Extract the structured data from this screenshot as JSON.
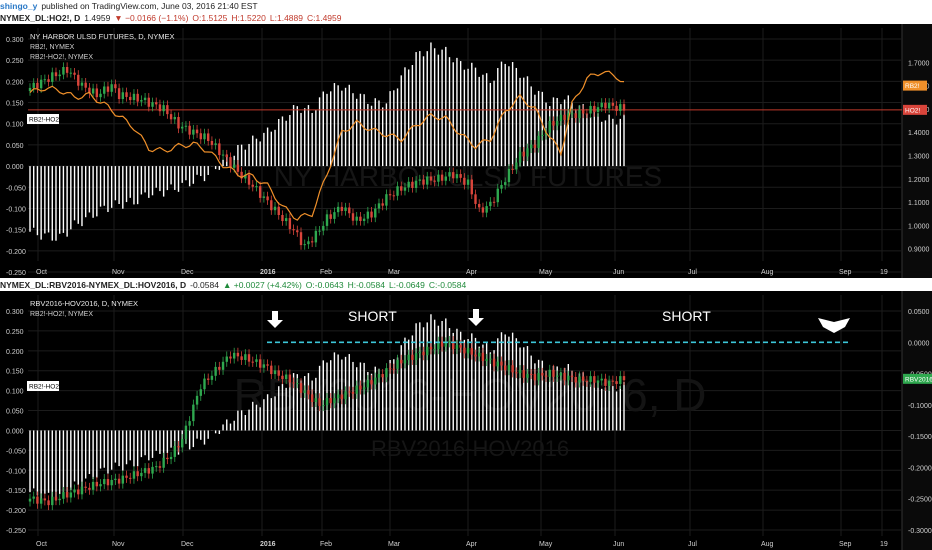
{
  "header": {
    "user": "shingo_y",
    "published": "published on TradingView.com, June 03, 2016 21:40 EST"
  },
  "theme": {
    "price_up": "#2fa84f",
    "price_down": "#d9453b",
    "orange": "#f0902a",
    "ref_line": "#c0392b",
    "cyan": "#3cc6d8",
    "volume": "#ffffff",
    "background": "#000000",
    "grid": "#1c1c1c"
  },
  "panels": [
    {
      "legend_bar": {
        "symbol": "NYMEX_DL:HO2!, D",
        "last": "1.4959",
        "change": "▼ −0.0166 (−1.1%)",
        "o": "O:1.5125",
        "h": "H:1.5220",
        "l": "L:1.4889",
        "c": "C:1.4959"
      },
      "legend": {
        "title": "NY HARBOR ULSD FUTURES, D, NYMEX",
        "line2": "RB2!, NYMEX",
        "line3": "RB2!-HO2!, NYMEX"
      },
      "watermark": "NY HARBOR ULSD FUTURES",
      "left_badge": "RB2!-HO2!",
      "right_badges": [
        {
          "text": "RB2!",
          "value": 1.6,
          "color": "#f0902a"
        },
        {
          "text": "HO2!",
          "value": 1.4959,
          "color": "#d9453b"
        }
      ]
    },
    {
      "legend_bar": {
        "symbol": "NYMEX_DL:RBV2016-NYMEX_DL:HOV2016, D",
        "last": "-0.0584",
        "change": "▲ +0.0027 (+4.42%)",
        "o": "O:-0.0643",
        "h": "H:-0.0584",
        "l": "L:-0.0649",
        "c": "C:-0.0584"
      },
      "legend": {
        "title": "RBV2016-HOV2016, D, NYMEX",
        "line2": "RB2!-HO2!, NYMEX",
        "line3": ""
      },
      "watermarks": [
        "RBV2016-HOV2016, D",
        "RBV2016-HOV2016"
      ],
      "left_badge": "RB2!-HO2!",
      "right_badges": [
        {
          "text": "RBV2016",
          "value": -0.0584,
          "color": "#2fa84f"
        }
      ],
      "annotations": [
        "SHORT",
        "SHORT"
      ]
    }
  ],
  "chart_data": [
    {
      "type": "line",
      "title": "NY HARBOR ULSD FUTURES, D, NYMEX",
      "x_tick_labels": [
        "Oct",
        "Nov",
        "Dec",
        "2016",
        "Feb",
        "Mar",
        "Apr",
        "May",
        "Jun",
        "Jul",
        "Aug",
        "Sep",
        "19"
      ],
      "left_axis": {
        "ticks": [
          0.3,
          0.25,
          0.2,
          0.15,
          0.1,
          0.05,
          0.0,
          -0.05,
          -0.1,
          -0.15,
          -0.2,
          -0.25
        ],
        "ylim": [
          -0.25,
          0.3
        ]
      },
      "right_axis": {
        "ticks": [
          1.7,
          1.6,
          1.5,
          1.4,
          1.3,
          1.2,
          1.1,
          1.0,
          0.9
        ],
        "ylim": [
          0.8,
          1.8
        ]
      },
      "series": [
        {
          "name": "HO2!",
          "style": "candlestick",
          "axis": "right",
          "values": [
            [
              0,
              1.59
            ],
            [
              6,
              1.64
            ],
            [
              10,
              1.67
            ],
            [
              14,
              1.6
            ],
            [
              18,
              1.56
            ],
            [
              22,
              1.6
            ],
            [
              24,
              1.56
            ],
            [
              30,
              1.54
            ],
            [
              36,
              1.5
            ],
            [
              40,
              1.43
            ],
            [
              44,
              1.4
            ],
            [
              48,
              1.37
            ],
            [
              52,
              1.3
            ],
            [
              56,
              1.23
            ],
            [
              60,
              1.17
            ],
            [
              64,
              1.1
            ],
            [
              68,
              1.03
            ],
            [
              71,
              0.98
            ],
            [
              74,
              0.91
            ],
            [
              77,
              0.96
            ],
            [
              80,
              1.03
            ],
            [
              84,
              1.08
            ],
            [
              88,
              1.02
            ],
            [
              92,
              1.05
            ],
            [
              96,
              1.12
            ],
            [
              100,
              1.16
            ],
            [
              105,
              1.19
            ],
            [
              110,
              1.2
            ],
            [
              114,
              1.22
            ],
            [
              118,
              1.18
            ],
            [
              121,
              1.06
            ],
            [
              124,
              1.09
            ],
            [
              128,
              1.2
            ],
            [
              132,
              1.3
            ],
            [
              136,
              1.35
            ],
            [
              140,
              1.43
            ],
            [
              144,
              1.47
            ],
            [
              148,
              1.48
            ],
            [
              152,
              1.5
            ],
            [
              155,
              1.52
            ],
            [
              157,
              1.51
            ],
            [
              160,
              1.5
            ]
          ]
        },
        {
          "name": "RB2!",
          "axis": "right",
          "values": [
            [
              0,
              1.57
            ],
            [
              4,
              1.59
            ],
            [
              8,
              1.58
            ],
            [
              12,
              1.55
            ],
            [
              16,
              1.56
            ],
            [
              20,
              1.52
            ],
            [
              24,
              1.47
            ],
            [
              28,
              1.42
            ],
            [
              32,
              1.33
            ],
            [
              36,
              1.32
            ],
            [
              40,
              1.34
            ],
            [
              44,
              1.35
            ],
            [
              48,
              1.32
            ],
            [
              52,
              1.26
            ],
            [
              56,
              1.22
            ],
            [
              60,
              1.21
            ],
            [
              64,
              1.17
            ],
            [
              68,
              1.08
            ],
            [
              72,
              1.03
            ],
            [
              76,
              1.05
            ],
            [
              80,
              1.22
            ],
            [
              84,
              1.4
            ],
            [
              88,
              1.44
            ],
            [
              92,
              1.41
            ],
            [
              96,
              1.39
            ],
            [
              100,
              1.37
            ],
            [
              104,
              1.43
            ],
            [
              108,
              1.47
            ],
            [
              112,
              1.46
            ],
            [
              116,
              1.39
            ],
            [
              120,
              1.34
            ],
            [
              124,
              1.37
            ],
            [
              128,
              1.49
            ],
            [
              132,
              1.55
            ],
            [
              136,
              1.5
            ],
            [
              140,
              1.38
            ],
            [
              143,
              1.31
            ],
            [
              146,
              1.52
            ],
            [
              150,
              1.63
            ],
            [
              154,
              1.66
            ],
            [
              158,
              1.64
            ],
            [
              160,
              1.61
            ]
          ]
        },
        {
          "name": "RB2!-HO2!",
          "style": "histogram",
          "axis": "left",
          "values": [
            [
              0,
              -0.155
            ],
            [
              4,
              -0.165
            ],
            [
              8,
              -0.17
            ],
            [
              12,
              -0.14
            ],
            [
              16,
              -0.12
            ],
            [
              20,
              -0.1
            ],
            [
              24,
              -0.09
            ],
            [
              28,
              -0.085
            ],
            [
              32,
              -0.065
            ],
            [
              36,
              -0.06
            ],
            [
              40,
              -0.05
            ],
            [
              44,
              -0.035
            ],
            [
              48,
              -0.02
            ],
            [
              52,
              0.01
            ],
            [
              56,
              0.04
            ],
            [
              60,
              0.06
            ],
            [
              64,
              0.08
            ],
            [
              68,
              0.11
            ],
            [
              72,
              0.14
            ],
            [
              76,
              0.13
            ],
            [
              80,
              0.18
            ],
            [
              84,
              0.19
            ],
            [
              88,
              0.17
            ],
            [
              92,
              0.15
            ],
            [
              96,
              0.15
            ],
            [
              100,
              0.21
            ],
            [
              104,
              0.26
            ],
            [
              108,
              0.28
            ],
            [
              112,
              0.27
            ],
            [
              116,
              0.24
            ],
            [
              120,
              0.23
            ],
            [
              124,
              0.2
            ],
            [
              128,
              0.25
            ],
            [
              132,
              0.22
            ],
            [
              136,
              0.18
            ],
            [
              140,
              0.15
            ],
            [
              144,
              0.16
            ],
            [
              148,
              0.14
            ],
            [
              152,
              0.12
            ],
            [
              156,
              0.11
            ],
            [
              160,
              0.11
            ]
          ]
        }
      ]
    },
    {
      "type": "line",
      "title": "RBV2016-HOV2016, D, NYMEX",
      "x_tick_labels": [
        "Oct",
        "Nov",
        "Dec",
        "2016",
        "Feb",
        "Mar",
        "Apr",
        "May",
        "Jun",
        "Jul",
        "Aug",
        "Sep",
        "19"
      ],
      "left_axis": {
        "ticks": [
          0.3,
          0.25,
          0.2,
          0.15,
          0.1,
          0.05,
          0.0,
          -0.05,
          -0.1,
          -0.15,
          -0.2,
          -0.25
        ],
        "ylim": [
          -0.25,
          0.3
        ]
      },
      "right_axis": {
        "ticks": [
          0.05,
          0.0,
          -0.05,
          -0.1,
          -0.15,
          -0.2,
          -0.25,
          -0.3
        ],
        "ylim": [
          -0.3,
          0.05
        ]
      },
      "series": [
        {
          "name": "RBV2016-HOV2016",
          "style": "candlestick",
          "axis": "right",
          "values": [
            [
              0,
              -0.25
            ],
            [
              5,
              -0.255
            ],
            [
              9,
              -0.245
            ],
            [
              14,
              -0.235
            ],
            [
              19,
              -0.225
            ],
            [
              24,
              -0.22
            ],
            [
              29,
              -0.21
            ],
            [
              34,
              -0.2
            ],
            [
              38,
              -0.18
            ],
            [
              41,
              -0.155
            ],
            [
              43,
              -0.12
            ],
            [
              46,
              -0.07
            ],
            [
              50,
              -0.045
            ],
            [
              54,
              -0.02
            ],
            [
              58,
              -0.025
            ],
            [
              62,
              -0.035
            ],
            [
              64,
              -0.04
            ],
            [
              66,
              -0.05
            ],
            [
              70,
              -0.06
            ],
            [
              74,
              -0.08
            ],
            [
              78,
              -0.1
            ],
            [
              82,
              -0.09
            ],
            [
              86,
              -0.08
            ],
            [
              90,
              -0.07
            ],
            [
              95,
              -0.05
            ],
            [
              100,
              -0.03
            ],
            [
              104,
              -0.02
            ],
            [
              108,
              -0.01
            ],
            [
              112,
              0.0
            ],
            [
              116,
              -0.01
            ],
            [
              120,
              -0.02
            ],
            [
              124,
              -0.03
            ],
            [
              128,
              -0.04
            ],
            [
              132,
              -0.05
            ],
            [
              136,
              -0.055
            ],
            [
              140,
              -0.05
            ],
            [
              144,
              -0.055
            ],
            [
              148,
              -0.06
            ],
            [
              152,
              -0.06
            ],
            [
              156,
              -0.065
            ],
            [
              160,
              -0.058
            ]
          ]
        },
        {
          "name": "RB2!-HO2!",
          "style": "histogram",
          "axis": "left",
          "values": [
            [
              0,
              -0.155
            ],
            [
              4,
              -0.165
            ],
            [
              8,
              -0.17
            ],
            [
              12,
              -0.14
            ],
            [
              16,
              -0.12
            ],
            [
              20,
              -0.1
            ],
            [
              24,
              -0.09
            ],
            [
              28,
              -0.085
            ],
            [
              32,
              -0.065
            ],
            [
              36,
              -0.06
            ],
            [
              40,
              -0.05
            ],
            [
              44,
              -0.035
            ],
            [
              48,
              -0.02
            ],
            [
              52,
              0.01
            ],
            [
              56,
              0.04
            ],
            [
              60,
              0.06
            ],
            [
              64,
              0.08
            ],
            [
              68,
              0.11
            ],
            [
              72,
              0.14
            ],
            [
              76,
              0.13
            ],
            [
              80,
              0.18
            ],
            [
              84,
              0.19
            ],
            [
              88,
              0.17
            ],
            [
              92,
              0.15
            ],
            [
              96,
              0.15
            ],
            [
              100,
              0.21
            ],
            [
              104,
              0.26
            ],
            [
              108,
              0.28
            ],
            [
              112,
              0.27
            ],
            [
              116,
              0.24
            ],
            [
              120,
              0.23
            ],
            [
              124,
              0.2
            ],
            [
              128,
              0.25
            ],
            [
              132,
              0.22
            ],
            [
              136,
              0.18
            ],
            [
              140,
              0.15
            ],
            [
              144,
              0.16
            ],
            [
              148,
              0.14
            ],
            [
              152,
              0.12
            ],
            [
              156,
              0.11
            ],
            [
              160,
              0.11
            ]
          ]
        }
      ],
      "annotations": [
        {
          "text": "SHORT"
        },
        {
          "text": "SHORT"
        }
      ],
      "reference_line": {
        "value": 0.0,
        "style": "dashed"
      }
    }
  ]
}
